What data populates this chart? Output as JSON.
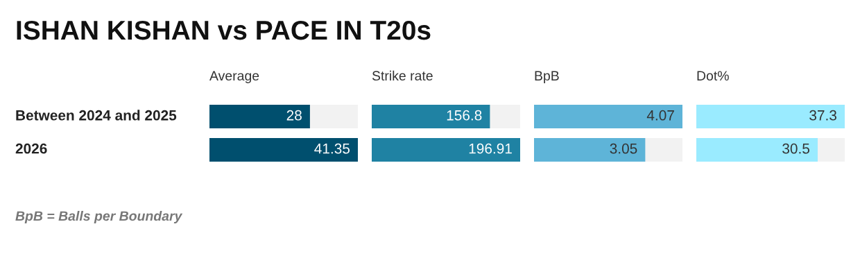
{
  "chart_data": [
    {
      "type": "bar",
      "orientation": "horizontal",
      "title": "Average",
      "categories": [
        "Between 2024 and 2025",
        "2026"
      ],
      "values": [
        28,
        41.35
      ],
      "color": "#004f6e",
      "xlim": [
        0,
        41.35
      ],
      "data_labels": true,
      "tick_labels": "y",
      "subtitle": "ISHAN KISHAN vs PACE IN T20s",
      "annotations": [
        "BpB = Balls per Boundary"
      ]
    },
    {
      "type": "bar",
      "orientation": "horizontal",
      "title": "Strike rate",
      "categories": [
        null,
        null
      ],
      "values": [
        156.8,
        196.91
      ],
      "color": "#1f82a3",
      "xlim": [
        0,
        196.91
      ],
      "data_labels": true,
      "tick_labels": false
    },
    {
      "type": "bar",
      "orientation": "horizontal",
      "title": "BpB",
      "categories": [
        null,
        null
      ],
      "values": [
        4.07,
        3.05
      ],
      "color": "#5eb4d8",
      "xlim": [
        0,
        4.07
      ],
      "data_labels": true,
      "tick_labels": false
    },
    {
      "type": "bar",
      "orientation": "horizontal",
      "title": "Dot%",
      "categories": [
        null,
        null
      ],
      "values": [
        37.3,
        30.5
      ],
      "color": "#9aebff",
      "xlim": [
        0,
        37.3
      ],
      "data_labels": true,
      "tick_labels": false
    }
  ]
}
